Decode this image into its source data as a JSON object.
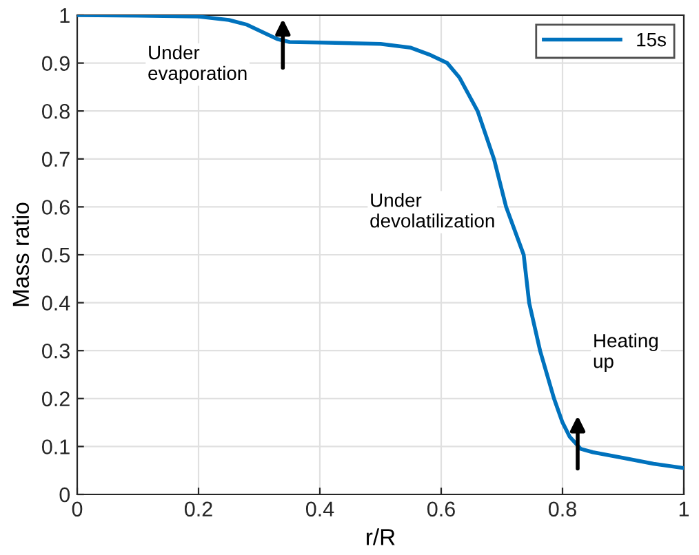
{
  "chart_data": {
    "type": "line",
    "xlabel": "r/R",
    "ylabel": "Mass ratio",
    "series": [
      {
        "name": "15s",
        "color": "#0072bd",
        "x": [
          0,
          0.1,
          0.2,
          0.25,
          0.28,
          0.31,
          0.33,
          0.35,
          0.4,
          0.5,
          0.55,
          0.58,
          0.61,
          0.63,
          0.66,
          0.687,
          0.707,
          0.736,
          0.745,
          0.763,
          0.786,
          0.8,
          0.812,
          0.83,
          0.85,
          0.9,
          0.95,
          1.0
        ],
        "values": [
          1.0,
          0.999,
          0.997,
          0.99,
          0.98,
          0.962,
          0.95,
          0.944,
          0.943,
          0.94,
          0.932,
          0.918,
          0.9,
          0.87,
          0.8,
          0.7,
          0.6,
          0.5,
          0.4,
          0.3,
          0.2,
          0.15,
          0.12,
          0.095,
          0.088,
          0.076,
          0.064,
          0.055
        ]
      }
    ],
    "xlim": [
      0,
      1
    ],
    "ylim": [
      0,
      1
    ],
    "xticks": [
      0,
      0.2,
      0.4,
      0.6,
      0.8,
      1
    ],
    "yticks": [
      0,
      0.1,
      0.2,
      0.3,
      0.4,
      0.5,
      0.6,
      0.7,
      0.8,
      0.9,
      1
    ],
    "annotations": [
      "Under\nevaporation",
      "Under\ndevolatilization",
      "Heating\nup"
    ],
    "grid": true,
    "legend": "top right",
    "marker": "none",
    "line_style": "solid"
  }
}
